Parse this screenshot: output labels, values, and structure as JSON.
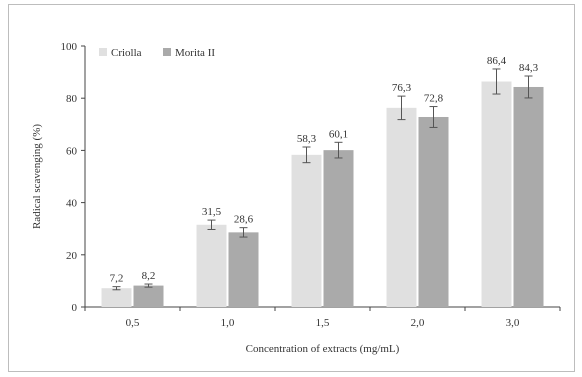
{
  "chart_data": {
    "type": "bar",
    "categories": [
      "0,5",
      "1,0",
      "1,5",
      "2,0",
      "3,0"
    ],
    "series": [
      {
        "name": "Criolla",
        "values": [
          7.2,
          31.5,
          58.3,
          76.3,
          86.4
        ],
        "labels": [
          "7,2",
          "31,5",
          "58,3",
          "76,3",
          "86,4"
        ],
        "errors": [
          0.6,
          1.8,
          3.0,
          4.5,
          4.8
        ],
        "color": "#e0e0e0"
      },
      {
        "name": "Morita II",
        "values": [
          8.2,
          28.6,
          60.1,
          72.8,
          84.3
        ],
        "labels": [
          "8,2",
          "28,6",
          "60,1",
          "72,8",
          "84,3"
        ],
        "errors": [
          0.6,
          1.8,
          3.0,
          4.0,
          4.2
        ],
        "color": "#aaaaaa"
      }
    ],
    "xlabel": "Concentration of extracts (mg/mL)",
    "ylabel": "Radical scavenging (%)",
    "ylim": [
      0,
      100
    ],
    "yticks": [
      "0",
      "20",
      "40",
      "60",
      "80",
      "100"
    ],
    "legend_position": "top-left",
    "grid": false
  }
}
